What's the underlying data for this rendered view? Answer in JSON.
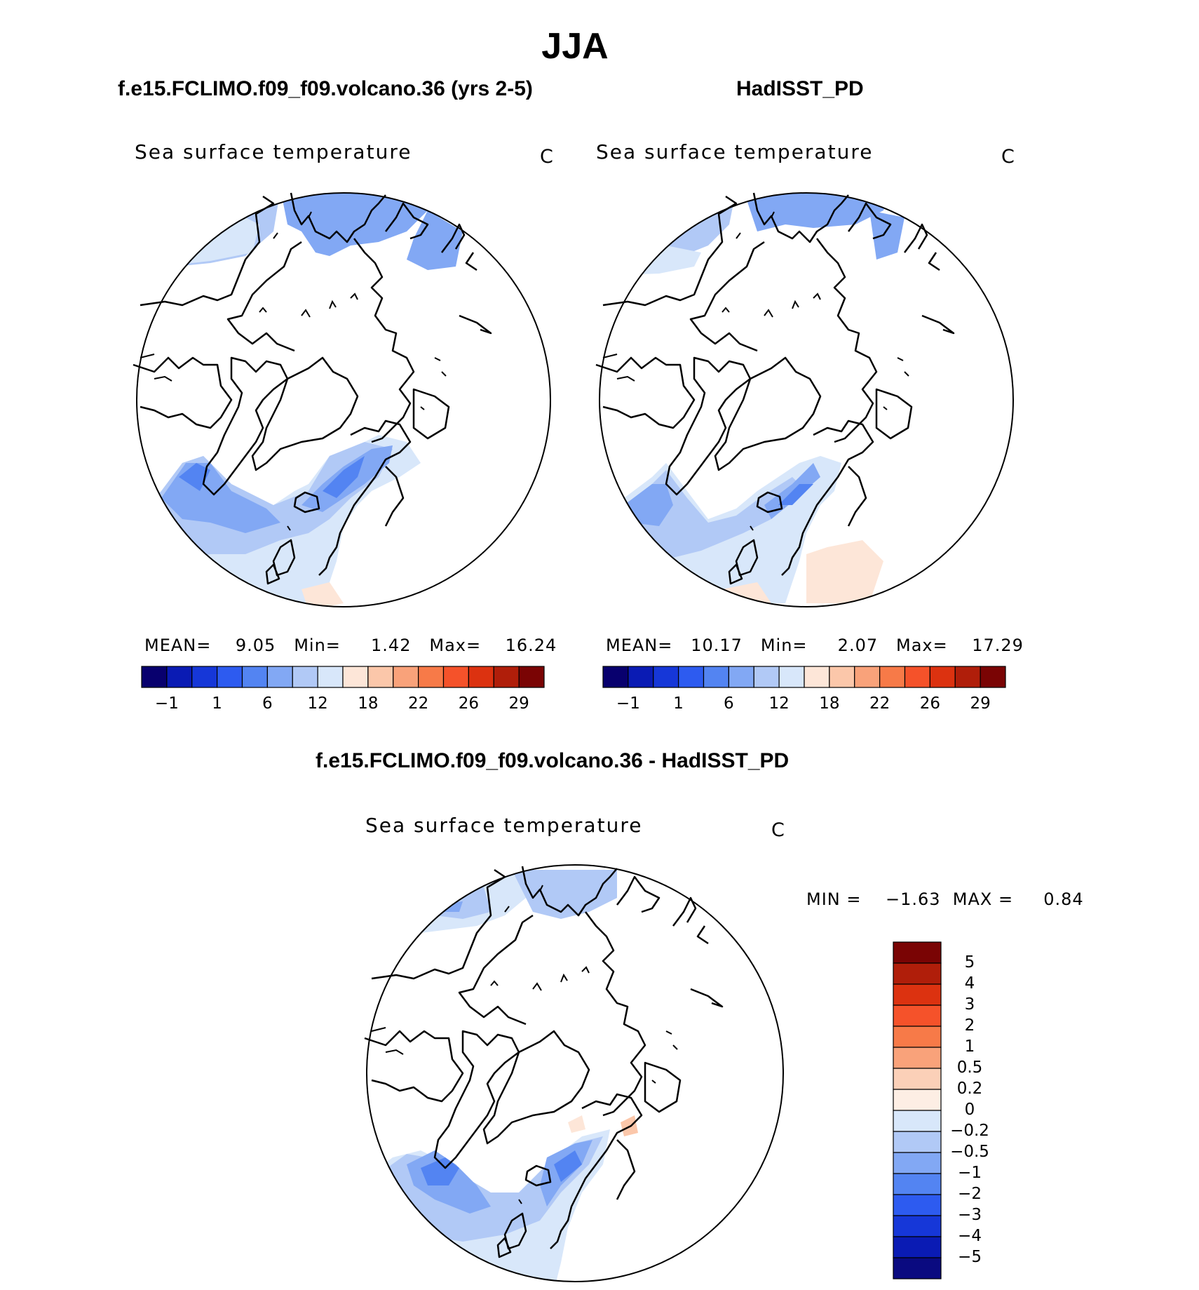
{
  "title": "JJA",
  "colors": {
    "scale": [
      "#08006e",
      "#0a1bb4",
      "#1637d8",
      "#2d5bf0",
      "#5384f2",
      "#82a8f4",
      "#b1c9f6",
      "#d8e7fa",
      "#fde6d8",
      "#fbc7aa",
      "#f9a27a",
      "#f77a48",
      "#f5522a",
      "#dc3210",
      "#b01e0a",
      "#7a0404"
    ],
    "diff_scale": [
      "#0a0a80",
      "#0a1bb4",
      "#1637d8",
      "#2d5bf0",
      "#5384f2",
      "#82a8f4",
      "#b1c9f6",
      "#d8e7fa",
      "#fdeee4",
      "#fbd0b8",
      "#f9a27a",
      "#f77a48",
      "#f5522a",
      "#dc3210",
      "#b01e0a",
      "#7a0404"
    ]
  },
  "panels": {
    "model": {
      "case_title": "f.e15.FCLIMO.f09_f09.volcano.36 (yrs 2-5)",
      "var_label": "Sea surface temperature",
      "unit": "C",
      "stats": "MEAN=    9.05   Min=     1.42   Max=    16.24",
      "tick_labels": [
        "−1",
        "1",
        "6",
        "12",
        "18",
        "22",
        "26",
        "29"
      ]
    },
    "obs": {
      "case_title": "HadISST_PD",
      "var_label": "Sea surface temperature",
      "unit": "C",
      "stats": "MEAN=   10.17   Min=     2.07   Max=    17.29",
      "tick_labels": [
        "−1",
        "1",
        "6",
        "12",
        "18",
        "22",
        "26",
        "29"
      ]
    },
    "diff": {
      "case_title": "f.e15.FCLIMO.f09_f09.volcano.36 - HadISST_PD",
      "var_label": "Sea surface temperature",
      "unit": "C",
      "stats": "MIN =    −1.63  MAX =     0.84",
      "tick_labels": [
        "5",
        "4",
        "3",
        "2",
        "1",
        "0.5",
        "0.2",
        "0",
        "−0.2",
        "−0.5",
        "−1",
        "−2",
        "−3",
        "−4",
        "−5"
      ]
    }
  },
  "chart_data": [
    {
      "type": "heatmap",
      "projection": "north-polar-stereographic",
      "season": "JJA",
      "title": "f.e15.FCLIMO.f09_f09.volcano.36 (yrs 2-5)",
      "variable": "Sea surface temperature",
      "units": "C",
      "mean": 9.05,
      "min": 1.42,
      "max": 16.24,
      "contour_levels": [
        -1,
        1,
        6,
        12,
        18,
        22,
        26,
        29
      ]
    },
    {
      "type": "heatmap",
      "projection": "north-polar-stereographic",
      "season": "JJA",
      "title": "HadISST_PD",
      "variable": "Sea surface temperature",
      "units": "C",
      "mean": 10.17,
      "min": 2.07,
      "max": 17.29,
      "contour_levels": [
        -1,
        1,
        6,
        12,
        18,
        22,
        26,
        29
      ]
    },
    {
      "type": "heatmap",
      "projection": "north-polar-stereographic",
      "season": "JJA",
      "title": "f.e15.FCLIMO.f09_f09.volcano.36 - HadISST_PD",
      "variable": "Sea surface temperature",
      "units": "C",
      "min": -1.63,
      "max": 0.84,
      "contour_levels": [
        -5,
        -4,
        -3,
        -2,
        -1,
        -0.5,
        -0.2,
        0,
        0.2,
        0.5,
        1,
        2,
        3,
        4,
        5
      ]
    }
  ]
}
